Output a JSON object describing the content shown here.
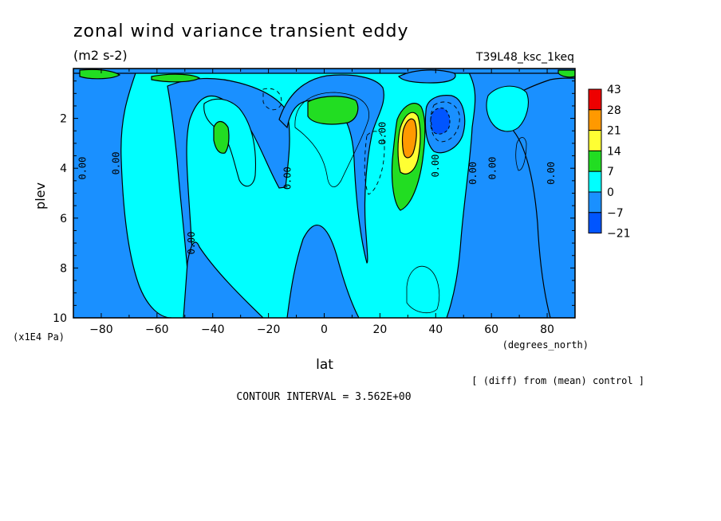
{
  "chart_data": {
    "type": "contour",
    "title": "zonal wind variance transient eddy",
    "units": "(m2 s-2)",
    "run_label": "T39L48_ksc_1keq",
    "xlabel": "lat",
    "xunits": "(degrees_north)",
    "ylabel": "plev",
    "yunits": "(x1E4 Pa)",
    "xlim": [
      -90,
      90
    ],
    "ylim": [
      10,
      0
    ],
    "x_ticks": [
      -80,
      -60,
      -40,
      -20,
      0,
      20,
      40,
      60,
      80
    ],
    "y_ticks": [
      2,
      4,
      6,
      8,
      10
    ],
    "contour_interval_text": "CONTOUR INTERVAL = 3.562E+00",
    "note": "[ (diff) from (mean) control ]",
    "zero_label": "0.00",
    "colorbar": {
      "labels": [
        "43",
        "28",
        "21",
        "14",
        "7",
        "0",
        "-7",
        "-21"
      ],
      "colors": [
        "#ee0000",
        "#ff9900",
        "#ffff33",
        "#22dd22",
        "#00ffff",
        "#1a90ff",
        "#0055ff"
      ]
    },
    "zero_contour_labels": [
      {
        "lat": -85.5,
        "plev": 4.0
      },
      {
        "lat": -73.5,
        "plev": 3.8
      },
      {
        "lat": -46.5,
        "plev": 7.0
      },
      {
        "lat": -12.0,
        "plev": 4.4
      },
      {
        "lat": 22.0,
        "plev": 2.6
      },
      {
        "lat": 41.0,
        "plev": 3.9
      },
      {
        "lat": 54.5,
        "plev": 4.2
      },
      {
        "lat": 61.5,
        "plev": 4.0
      },
      {
        "lat": 82.5,
        "plev": 4.2
      }
    ],
    "features": [
      {
        "name": "positive-max",
        "lat": 30.0,
        "plev": 3.0,
        "peak_value": 28
      },
      {
        "name": "negative-min",
        "lat": 41.0,
        "plev": 2.2,
        "peak_value": -21
      },
      {
        "name": "positive-blob",
        "lat": 3.0,
        "plev": 1.8,
        "peak_value": 7
      },
      {
        "name": "positive-blob",
        "lat": -36.0,
        "plev": 2.8,
        "peak_value": 7
      }
    ]
  }
}
